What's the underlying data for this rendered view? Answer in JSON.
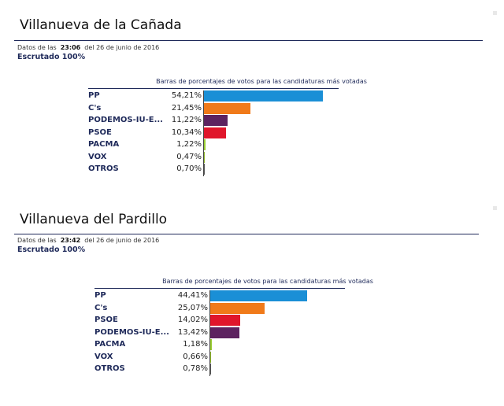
{
  "chart_data": [
    {
      "type": "bar",
      "orientation": "horizontal",
      "municipality": "Villanueva de la Cañada",
      "title": "Barras de porcentajes de votos para las candidaturas más votadas",
      "meta_prefix": "Datos de las",
      "time": "23:06",
      "meta_suffix": "del 26 de junio de 2016",
      "status": "Escrutado 100%",
      "categories": [
        "PP",
        "C's",
        "PODEMOS-IU-E...",
        "PSOE",
        "PACMA",
        "VOX",
        "OTROS"
      ],
      "values": [
        54.21,
        21.45,
        11.22,
        10.34,
        1.22,
        0.47,
        0.7
      ],
      "labels": [
        "54,21%",
        "21,45%",
        "11,22%",
        "10,34%",
        "1,22%",
        "0,47%",
        "0,70%"
      ],
      "colors": [
        "#1a8fd6",
        "#f07a1a",
        "#5d2360",
        "#e0162b",
        "#9acd32",
        "#8fb82a",
        "#555555"
      ],
      "xlim": [
        0,
        100
      ]
    },
    {
      "type": "bar",
      "orientation": "horizontal",
      "municipality": "Villanueva del Pardillo",
      "title": "Barras de porcentajes de votos para las candidaturas más votadas",
      "meta_prefix": "Datos de las",
      "time": "23:42",
      "meta_suffix": "del 26 de junio de 2016",
      "status": "Escrutado 100%",
      "categories": [
        "PP",
        "C's",
        "PSOE",
        "PODEMOS-IU-E...",
        "PACMA",
        "VOX",
        "OTROS"
      ],
      "values": [
        44.41,
        25.07,
        14.02,
        13.42,
        1.18,
        0.66,
        0.78
      ],
      "labels": [
        "44,41%",
        "25,07%",
        "14,02%",
        "13,42%",
        "1,18%",
        "0,66%",
        "0,78%"
      ],
      "colors": [
        "#1a8fd6",
        "#f07a1a",
        "#e0162b",
        "#5d2360",
        "#9acd32",
        "#8fb82a",
        "#555555"
      ],
      "xlim": [
        0,
        100
      ]
    }
  ]
}
